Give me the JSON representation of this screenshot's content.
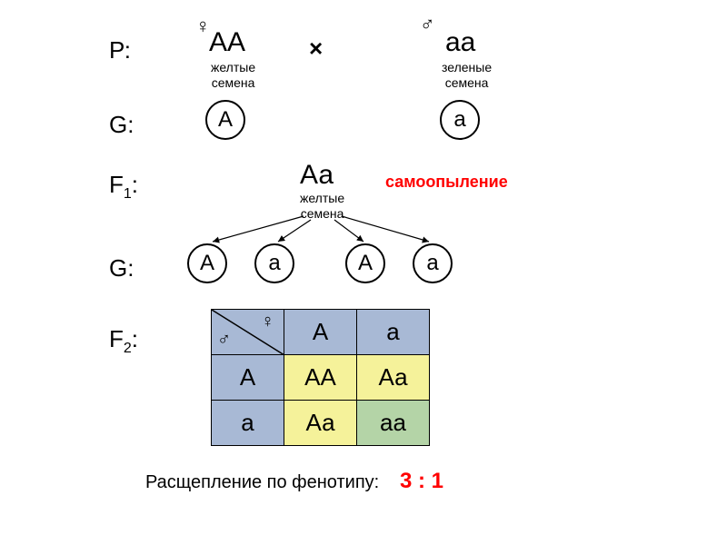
{
  "labels": {
    "P": "Р:",
    "G1": "G:",
    "F1": "F",
    "F1sub": "1",
    "G2": "G:",
    "F2": "F",
    "F2sub": "2"
  },
  "parents": {
    "female": {
      "symbol": "♀",
      "genotype": "АА",
      "phenotype": "желтые\nсемена"
    },
    "male": {
      "symbol": "♂",
      "genotype": "аа",
      "phenotype": "зеленые\nсемена"
    },
    "cross": "×"
  },
  "gametes_p": {
    "left": "А",
    "right": "а"
  },
  "f1": {
    "genotype": "Аа",
    "phenotype": "желтые\nсемена"
  },
  "self_pollination": "самоопыление",
  "gametes_f1": [
    "А",
    "а",
    "А",
    "а"
  ],
  "punnett": {
    "headers_col": [
      "А",
      "а"
    ],
    "headers_row": [
      "А",
      "а"
    ],
    "cells": [
      [
        "АА",
        "Аа"
      ],
      [
        "Аа",
        "аа"
      ]
    ],
    "colors": {
      "header": "#a8b9d5",
      "yellow": "#f5f29a",
      "green": "#b4d4a7"
    },
    "male_symbol": "♂",
    "female_symbol": "♀"
  },
  "caption": {
    "text": "Расщепление по фенотипу:",
    "ratio": "3 : 1"
  }
}
